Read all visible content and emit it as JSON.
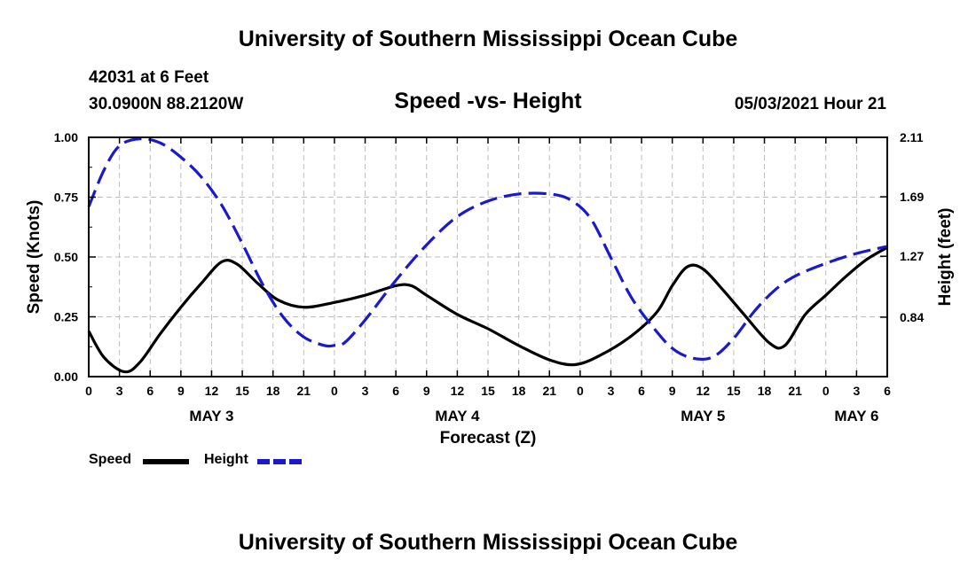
{
  "header": {
    "title": "University of Southern Mississippi Ocean Cube",
    "station": "42031 at 6 Feet",
    "coords": "30.0900N  88.2120W",
    "chart_title": "Speed -vs- Height",
    "run": "05/03/2021 Hour 21"
  },
  "footer": {
    "title": "University of Southern Mississippi Ocean Cube"
  },
  "legend": {
    "speed_label": "Speed",
    "height_label": "Height"
  },
  "colors": {
    "speed": "#000000",
    "height": "#1a1acc",
    "grid": "#bdbdbd"
  },
  "chart_data": {
    "type": "line",
    "title": "Speed -vs- Height",
    "xlabel": "Forecast (Z)",
    "ylabel": "Speed (Knots)",
    "y2label": "Height (feet)",
    "xlim": [
      0,
      78
    ],
    "ylim": [
      0,
      1
    ],
    "y2lim": [
      0.42,
      2.11
    ],
    "x_tick_labels": [
      "0",
      "3",
      "6",
      "9",
      "12",
      "15",
      "18",
      "21",
      "0",
      "3",
      "6",
      "9",
      "12",
      "15",
      "18",
      "21",
      "0",
      "3",
      "6",
      "9",
      "12",
      "15",
      "18",
      "21",
      "0",
      "3",
      "6"
    ],
    "y_tick_labels": [
      "0.00",
      "0.25",
      "0.50",
      "0.75",
      "1.00"
    ],
    "y_tick_values": [
      0,
      0.25,
      0.5,
      0.75,
      1.0
    ],
    "y2_tick_labels": [
      "0.84",
      "1.27",
      "1.69",
      "2.11"
    ],
    "y2_tick_values": [
      0.84,
      1.27,
      1.69,
      2.11
    ],
    "date_labels": [
      {
        "text": "MAY 3",
        "x": 12
      },
      {
        "text": "MAY 4",
        "x": 36
      },
      {
        "text": "MAY 5",
        "x": 60
      },
      {
        "text": "MAY 6",
        "x": 75
      }
    ],
    "series": [
      {
        "name": "Speed",
        "axis": "left",
        "style": "solid",
        "x": [
          0,
          1.5,
          3.5,
          5,
          7,
          9,
          11,
          13,
          14.5,
          16.5,
          18.5,
          21,
          24,
          27,
          30,
          31.5,
          33,
          36,
          39,
          42,
          45,
          47.5,
          50,
          53,
          55.5,
          57,
          58.5,
          60,
          62,
          64,
          66.5,
          68,
          70,
          72,
          74,
          76,
          78
        ],
        "values": [
          0.19,
          0.08,
          0.02,
          0.06,
          0.18,
          0.29,
          0.39,
          0.48,
          0.47,
          0.39,
          0.32,
          0.29,
          0.31,
          0.34,
          0.38,
          0.38,
          0.34,
          0.26,
          0.2,
          0.13,
          0.07,
          0.05,
          0.09,
          0.17,
          0.27,
          0.38,
          0.46,
          0.45,
          0.36,
          0.26,
          0.14,
          0.13,
          0.26,
          0.34,
          0.42,
          0.49,
          0.54
        ]
      },
      {
        "name": "Height",
        "axis": "right",
        "style": "dashed",
        "x": [
          0,
          1.5,
          3,
          5,
          7,
          9,
          11,
          13,
          15,
          17,
          19,
          21,
          23,
          24,
          25,
          27,
          30,
          33,
          36,
          39,
          42,
          45,
          47,
          49,
          51,
          53,
          55,
          57,
          59,
          61,
          63,
          65,
          67,
          69,
          72,
          75,
          78
        ],
        "values": [
          1.62,
          1.88,
          2.05,
          2.1,
          2.07,
          1.97,
          1.83,
          1.63,
          1.36,
          1.07,
          0.84,
          0.7,
          0.64,
          0.64,
          0.66,
          0.82,
          1.1,
          1.35,
          1.55,
          1.66,
          1.71,
          1.71,
          1.67,
          1.54,
          1.26,
          0.98,
          0.78,
          0.62,
          0.55,
          0.56,
          0.69,
          0.88,
          1.03,
          1.13,
          1.22,
          1.29,
          1.34
        ]
      }
    ]
  }
}
